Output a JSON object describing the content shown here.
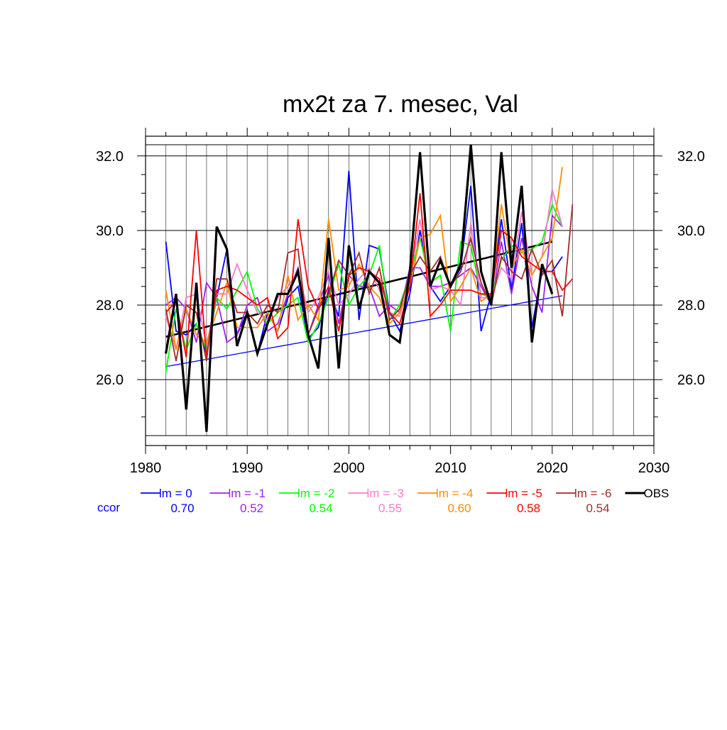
{
  "chart_data": {
    "type": "line",
    "title": "mx2t za 7. mesec, Val",
    "xlabel": "",
    "ylabel": "",
    "xlim": [
      1980,
      2030
    ],
    "ylim": [
      24.5,
      32.3
    ],
    "x_ticks": [
      1980,
      1990,
      2000,
      2010,
      2020,
      2030
    ],
    "x_tick_labels": [
      "1980",
      "1990",
      "2000",
      "2010",
      "2020",
      "2030"
    ],
    "y_ticks": [
      26.0,
      28.0,
      30.0,
      32.0
    ],
    "y_tick_labels": [
      "26.0",
      "28.0",
      "30.0",
      "32.0"
    ],
    "grid": true,
    "ccor_label": "ccor",
    "series": [
      {
        "name": "lm = 0",
        "color": "#0000ff",
        "start_year": 1982,
        "ccor": "0.70",
        "values": [
          29.7,
          27.3,
          27.2,
          27.5,
          26.7,
          28.2,
          29.5,
          27.2,
          27.8,
          26.7,
          27.8,
          27.3,
          28.2,
          28.5,
          27.1,
          27.4,
          28.4,
          27.7,
          31.6,
          27.6,
          29.6,
          29.5,
          27.8,
          27.3,
          28.3,
          30.0,
          28.5,
          28.1,
          28.5,
          29.0,
          31.2,
          27.3,
          28.3,
          30.3,
          28.4,
          30.2,
          27.4,
          28.9,
          28.9,
          29.3
        ]
      },
      {
        "name": "lm = -1",
        "color": "#a020f0",
        "start_year": 1982,
        "ccor": "0.52",
        "values": [
          28.0,
          28.2,
          27.9,
          27.0,
          28.6,
          28.2,
          27.0,
          27.2,
          28.0,
          28.2,
          27.3,
          27.5,
          28.3,
          29.0,
          27.2,
          28.0,
          28.8,
          27.5,
          28.8,
          28.5,
          28.5,
          27.7,
          28.0,
          27.8,
          29.0,
          29.0,
          28.5,
          28.5,
          28.6,
          28.8,
          29.0,
          28.5,
          28.0,
          29.7,
          28.3,
          29.8,
          28.5,
          27.8,
          30.4,
          30.1
        ]
      },
      {
        "name": "lm = -2",
        "color": "#00ff00",
        "start_year": 1982,
        "ccor": "0.54",
        "values": [
          26.2,
          27.9,
          26.8,
          27.5,
          26.8,
          28.2,
          27.9,
          28.4,
          28.9,
          27.9,
          27.5,
          27.8,
          28.0,
          28.2,
          27.0,
          27.5,
          28.2,
          29.1,
          28.0,
          28.5,
          28.8,
          29.6,
          27.6,
          28.0,
          28.8,
          29.8,
          28.6,
          28.8,
          27.3,
          29.7,
          29.6,
          28.3,
          28.2,
          29.2,
          29.6,
          29.4,
          29.5,
          29.7,
          30.7,
          30.1
        ]
      },
      {
        "name": "lm = -3",
        "color": "#ff77cc",
        "start_year": 1982,
        "ccor": "0.55",
        "values": [
          27.7,
          26.8,
          28.2,
          28.3,
          26.9,
          28.3,
          28.3,
          29.1,
          28.4,
          27.8,
          27.6,
          28.2,
          28.5,
          28.9,
          27.8,
          28.2,
          28.9,
          28.0,
          28.3,
          28.7,
          29.0,
          28.4,
          27.8,
          27.7,
          28.7,
          30.3,
          28.4,
          28.5,
          28.4,
          28.0,
          30.2,
          28.2,
          28.2,
          29.0,
          28.7,
          30.5,
          28.8,
          29.3,
          31.1,
          30.1
        ]
      },
      {
        "name": "lm = -4",
        "color": "#ff8c00",
        "start_year": 1982,
        "ccor": "0.60",
        "values": [
          28.4,
          26.8,
          27.9,
          27.2,
          27.0,
          27.8,
          28.6,
          27.4,
          27.4,
          27.4,
          27.8,
          27.3,
          28.8,
          27.6,
          28.0,
          27.6,
          30.3,
          28.4,
          28.5,
          29.1,
          28.5,
          28.2,
          27.5,
          27.8,
          28.5,
          29.8,
          29.9,
          30.4,
          28.1,
          28.5,
          29.0,
          28.1,
          28.3,
          30.7,
          29.0,
          29.5,
          28.8,
          29.3,
          29.8,
          31.7
        ]
      },
      {
        "name": "lm = -5",
        "color": "#ff0000",
        "start_year": 1982,
        "ccor": "0.58",
        "values": [
          27.8,
          28.1,
          26.6,
          30.0,
          26.6,
          28.4,
          28.5,
          28.4,
          28.2,
          28.0,
          28.2,
          27.1,
          27.4,
          30.3,
          28.5,
          27.9,
          28.5,
          27.3,
          28.8,
          29.0,
          28.9,
          28.7,
          27.8,
          27.5,
          28.5,
          31.0,
          27.7,
          28.0,
          28.4,
          28.4,
          28.4,
          28.3,
          28.3,
          30.0,
          29.8,
          29.3,
          29.1,
          28.9,
          28.9,
          28.4,
          28.7
        ]
      },
      {
        "name": "lm = -6",
        "color": "#a52a2a",
        "start_year": 1982,
        "ccor": "0.54",
        "values": [
          27.9,
          26.5,
          28.0,
          27.8,
          26.5,
          28.7,
          28.7,
          27.8,
          27.8,
          27.5,
          28.0,
          27.8,
          29.4,
          29.5,
          27.2,
          27.9,
          28.3,
          29.2,
          28.8,
          29.4,
          28.3,
          29.0,
          27.6,
          27.9,
          28.8,
          29.3,
          28.9,
          29.3,
          28.5,
          28.9,
          29.8,
          28.6,
          28.0,
          29.3,
          28.9,
          28.7,
          29.5,
          28.8,
          29.2,
          27.7,
          30.7
        ]
      },
      {
        "name": "OBS",
        "color": "#000000",
        "start_year": 1982,
        "ccor": "",
        "values": [
          26.7,
          28.3,
          25.2,
          28.6,
          24.6,
          30.1,
          29.5,
          26.9,
          27.8,
          26.7,
          27.5,
          28.3,
          28.3,
          28.9,
          27.2,
          26.3,
          29.8,
          26.3,
          29.6,
          27.9,
          28.9,
          28.6,
          27.2,
          27.0,
          28.9,
          32.1,
          28.5,
          29.2,
          28.5,
          29.1,
          32.3,
          28.9,
          28.0,
          32.1,
          29.0,
          31.2,
          27.0,
          29.1,
          28.3
        ]
      }
    ],
    "trend_lines": [
      {
        "color": "#0000ff",
        "from": [
          1982,
          26.35
        ],
        "to": [
          2021,
          28.25
        ],
        "width": 1.3
      },
      {
        "color": "#000000",
        "from": [
          1982,
          27.15
        ],
        "to": [
          2020,
          29.7
        ],
        "width": 2.6
      }
    ]
  }
}
